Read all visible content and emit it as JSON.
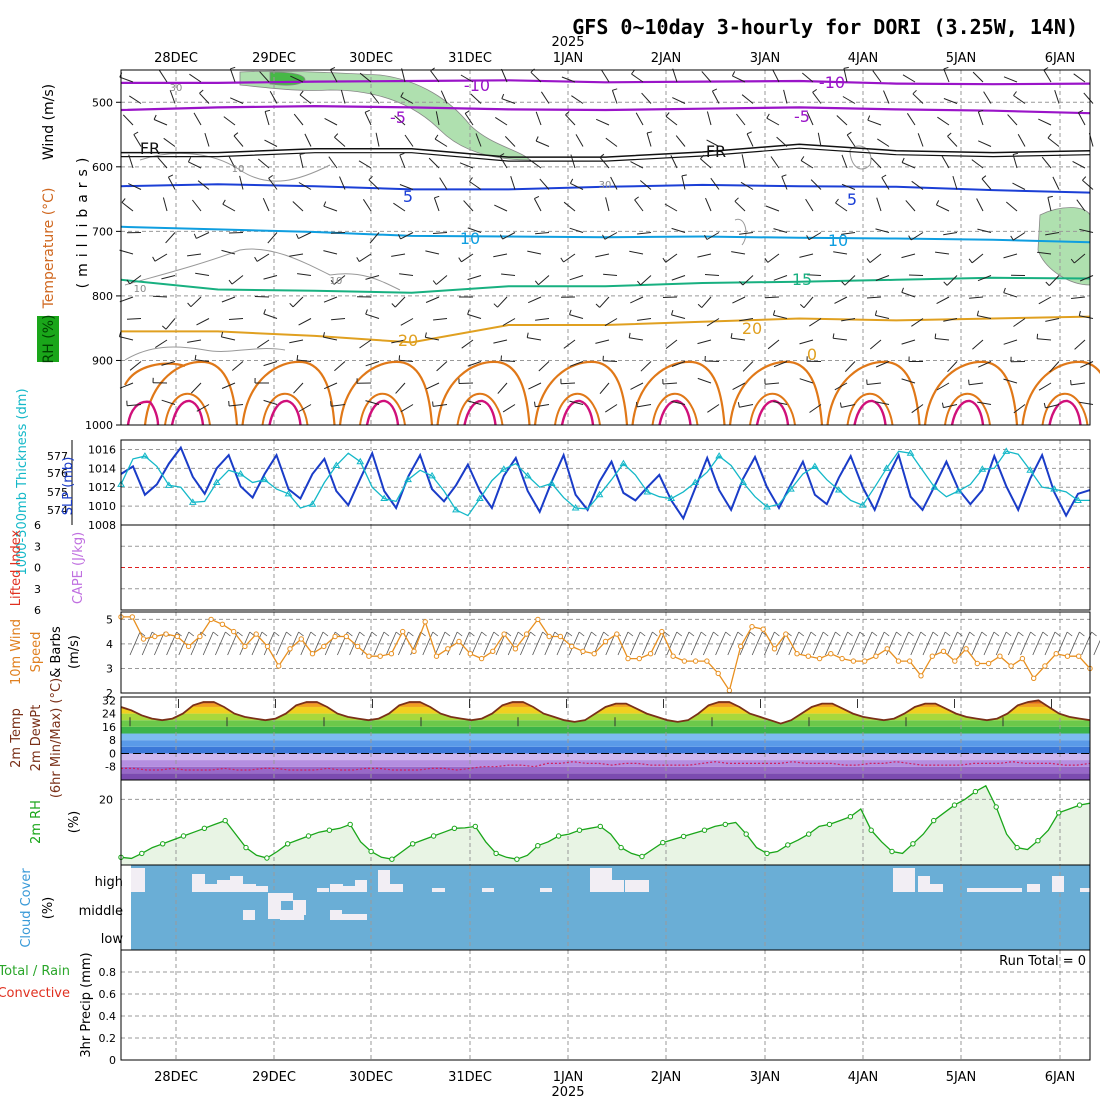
{
  "title": "GFS 0~10day 3-hourly for DORI (3.25W, 14N)",
  "year_label": "2025",
  "date_labels": [
    "28DEC",
    "29DEC",
    "30DEC",
    "31DEC",
    "1JAN",
    "2JAN",
    "3JAN",
    "4JAN",
    "5JAN",
    "6JAN"
  ],
  "colors": {
    "purple": "#9a14c8",
    "freezing": "#111111",
    "blue": "#1b3fd6",
    "cyan": "#0f9ee0",
    "green": "#18b080",
    "gold": "#e0a020",
    "orange": "#e07818",
    "magenta": "#d0107a",
    "rh_green": "#1aa61a",
    "slp_blue": "#1a3cc8",
    "thickness_cyan": "#14b8c8",
    "wind_orange": "#e89020",
    "temp_brown": "#7a3018",
    "cloud_blue": "#6aaed6",
    "cloud_white": "#f2eef4"
  },
  "panel_labels": {
    "upper_wind": "Wind (m/s)",
    "upper_temp": "Temperature (°C)",
    "upper_rh": "RH (%)",
    "upper_units": "(millibars)",
    "thickness": "1000-500mb Thickness (dm)",
    "slp": "SLP (mb)",
    "lifted": "Lifted Index",
    "cape": "CAPE (J/kg)",
    "wind10": "10m Wind",
    "wind10_speed": "Speed",
    "wind10_barbs": "& Barbs",
    "wind10_units": "(m/s)",
    "temp2m": "2m Temp",
    "dewpt2m": "2m DewPt",
    "minmax": "(6hr Min/Max) (°C)",
    "rh2m": "2m RH",
    "rh2m_units": "(%)",
    "cloud": "Cloud Cover",
    "cloud_units": "(%)",
    "cloud_high": "high",
    "cloud_middle": "middle",
    "cloud_low": "low",
    "precip_total": "Total / Rain",
    "precip_conv": "Convective",
    "precip_units": "3hr Precip (mm)",
    "run_total": "Run Total = 0"
  },
  "chart_data": [
    {
      "type": "line",
      "panel": "upper-air cross-section",
      "ylabel": "(millibars)",
      "yticks": [
        500,
        600,
        700,
        800,
        900,
        1000
      ],
      "ylim": [
        450,
        1000
      ],
      "y_inverted": true,
      "x": [
        "28DEC",
        "29DEC",
        "30DEC",
        "31DEC",
        "1JAN",
        "2JAN",
        "3JAN",
        "4JAN",
        "5JAN",
        "6JAN"
      ],
      "contour_labels": [
        "-10",
        "-10",
        "-5",
        "-5",
        "FR",
        "FR",
        "5",
        "5",
        "10",
        "10",
        "15",
        "20",
        "20",
        "0",
        "30",
        "30",
        "10",
        "10",
        "10"
      ],
      "series": [
        {
          "name": "-10",
          "level_mb": [
            470,
            470,
            468,
            467,
            466,
            469,
            468,
            467,
            471,
            472,
            471
          ]
        },
        {
          "name": "-5",
          "level_mb": [
            512,
            508,
            506,
            508,
            511,
            512,
            510,
            508,
            511,
            513,
            517
          ]
        },
        {
          "name": "FR",
          "level_mb": [
            578,
            578,
            572,
            572,
            585,
            585,
            577,
            565,
            575,
            578,
            575
          ]
        },
        {
          "name": "5",
          "level_mb": [
            630,
            627,
            630,
            635,
            635,
            631,
            628,
            630,
            631,
            636,
            640
          ]
        },
        {
          "name": "10",
          "level_mb": [
            693,
            697,
            701,
            707,
            708,
            709,
            708,
            710,
            711,
            713,
            717
          ]
        },
        {
          "name": "15",
          "level_mb": [
            775,
            790,
            792,
            795,
            785,
            785,
            780,
            778,
            775,
            772,
            773
          ]
        },
        {
          "name": "20",
          "level_mb": [
            855,
            855,
            862,
            872,
            845,
            845,
            840,
            835,
            838,
            835,
            832
          ]
        }
      ]
    },
    {
      "type": "line",
      "panel": "thickness / SLP",
      "ylabel": "1000-500mb Thickness (dm)",
      "ylabel_right_axis": "SLP (mb)",
      "yticks_thickness": [
        574,
        575,
        576,
        577
      ],
      "yticks_slp": [
        1008,
        1010,
        1012,
        1014,
        1016
      ],
      "ylim_slp": [
        1008,
        1017
      ],
      "series": [
        {
          "name": "SLP (mb)",
          "values": [
            1013.4,
            1014.2,
            1011.2,
            1012.3,
            1014.5,
            1016.2,
            1013.1,
            1011.3,
            1014.0,
            1015.4,
            1012.1,
            1010.9,
            1013.4,
            1015.4,
            1011.8,
            1010.8,
            1013.4,
            1015.0,
            1011.6,
            1010.1,
            1012.9,
            1015.6,
            1011.6,
            1009.8,
            1013.1,
            1015.4,
            1011.8,
            1010.5,
            1012.2,
            1014.4,
            1011.6,
            1009.8,
            1013.2,
            1015.1,
            1011.6,
            1009.4,
            1012.6,
            1015.4,
            1011.2,
            1009.6,
            1012.6,
            1014.7,
            1011.4,
            1010.6,
            1012.0,
            1013.3,
            1010.6,
            1008.7,
            1011.9,
            1015.1,
            1011.7,
            1009.6,
            1012.9,
            1015.2,
            1012.0,
            1009.8,
            1012.3,
            1014.7,
            1011.2,
            1010.2,
            1013.0,
            1015.3,
            1012.0,
            1009.6,
            1012.8,
            1015.4,
            1011.0,
            1009.6,
            1012.1,
            1014.7,
            1011.8,
            1010.2,
            1011.7,
            1015.3,
            1012.1,
            1009.6,
            1012.9,
            1015.4,
            1011.5,
            1009.0,
            1011.3,
            1011.7
          ]
        },
        {
          "name": "Thickness (dm)",
          "values": [
            1012.3,
            1015.0,
            1015.3,
            1014.2,
            1012.2,
            1012.0,
            1010.4,
            1010.5,
            1012.5,
            1013.8,
            1013.4,
            1012.5,
            1012.8,
            1011.8,
            1011.3,
            1009.8,
            1010.2,
            1012.5,
            1014.3,
            1015.6,
            1014.7,
            1012.0,
            1010.8,
            1010.5,
            1012.8,
            1013.8,
            1013.2,
            1011.6,
            1009.6,
            1009.0,
            1010.8,
            1012.7,
            1013.9,
            1014.5,
            1013.2,
            1012.0,
            1012.4,
            1010.9,
            1009.8,
            1009.7,
            1011.2,
            1012.8,
            1014.5,
            1013.3,
            1011.5,
            1011.0,
            1010.8,
            1011.5,
            1012.5,
            1013.6,
            1015.3,
            1014.3,
            1012.5,
            1011.0,
            1009.9,
            1010.2,
            1011.8,
            1013.4,
            1014.2,
            1012.8,
            1011.7,
            1010.6,
            1010.1,
            1012.0,
            1014.0,
            1015.8,
            1015.6,
            1013.8,
            1012.0,
            1011.0,
            1011.6,
            1012.3,
            1013.9,
            1014.0,
            1015.8,
            1015.5,
            1013.8,
            1012.0,
            1011.8,
            1011.5,
            1010.6,
            1010.6
          ]
        }
      ]
    },
    {
      "type": "line",
      "panel": "Lifted Index / CAPE",
      "ylabel": "Lifted Index",
      "ylabel_right": "CAPE (J/kg)",
      "yticks": [
        6,
        3,
        0,
        -3,
        -6
      ],
      "ylim": [
        -6,
        6
      ],
      "series": [
        {
          "name": "Lifted Index",
          "values": []
        }
      ]
    },
    {
      "type": "line",
      "panel": "10m wind",
      "ylabel": "(m/s)",
      "yticks": [
        2,
        3,
        4,
        5
      ],
      "ylim": [
        2,
        5.3
      ],
      "series": [
        {
          "name": "10m Wind Speed",
          "values": [
            5.1,
            5.1,
            4.2,
            4.3,
            4.4,
            4.3,
            3.9,
            4.3,
            5.0,
            4.8,
            4.5,
            3.9,
            4.4,
            3.9,
            3.1,
            3.8,
            4.2,
            3.6,
            3.9,
            4.3,
            4.3,
            3.9,
            3.5,
            3.5,
            3.6,
            4.5,
            3.7,
            4.9,
            3.5,
            3.8,
            4.1,
            3.6,
            3.4,
            3.7,
            4.4,
            3.8,
            4.4,
            5.0,
            4.3,
            4.3,
            3.9,
            3.7,
            3.6,
            4.1,
            4.4,
            3.4,
            3.4,
            3.6,
            4.5,
            3.5,
            3.3,
            3.3,
            3.3,
            2.8,
            2.1,
            3.9,
            4.7,
            4.6,
            3.8,
            4.4,
            3.6,
            3.5,
            3.4,
            3.6,
            3.4,
            3.3,
            3.3,
            3.5,
            3.8,
            3.3,
            3.3,
            2.7,
            3.5,
            3.7,
            3.3,
            3.8,
            3.2,
            3.2,
            3.5,
            3.1,
            3.4,
            2.6,
            3.1,
            3.6,
            3.5,
            3.5,
            3.0
          ]
        }
      ]
    },
    {
      "type": "area",
      "panel": "2m temp / dewpoint",
      "ylabel": "(6hr Min/Max) (°C)",
      "yticks": [
        -8,
        0,
        8,
        16,
        24,
        32
      ],
      "ylim": [
        -16,
        34
      ],
      "series": [
        {
          "name": "2m Temp",
          "values": [
            28,
            26,
            23,
            21,
            20,
            21,
            24,
            29,
            31,
            31,
            28,
            24,
            22,
            21,
            20,
            21,
            24,
            29,
            31,
            31,
            28,
            24,
            22,
            21,
            20,
            21,
            24,
            29,
            31,
            31,
            28,
            24,
            22,
            21,
            20,
            21,
            24,
            29,
            31,
            31,
            28,
            24,
            22,
            20,
            19,
            20,
            24,
            28,
            30,
            30,
            27,
            24,
            22,
            20,
            19,
            20,
            24,
            29,
            31,
            31,
            28,
            24,
            22,
            20,
            18,
            20,
            24,
            28,
            30,
            30,
            27,
            24,
            22,
            21,
            20,
            21,
            24,
            28,
            30,
            30,
            27,
            24,
            22,
            21,
            20,
            21,
            24,
            29,
            31,
            32,
            28,
            24,
            22,
            21,
            20
          ]
        },
        {
          "name": "2m DewPt",
          "values": [
            -9,
            -9,
            -10,
            -10,
            -9,
            -10,
            -10,
            -10,
            -9,
            -10,
            -10,
            -9,
            -9,
            -10,
            -10,
            -10,
            -9,
            -10,
            -10,
            -9,
            -9,
            -10,
            -10,
            -10,
            -9,
            -9,
            -10,
            -9,
            -8,
            -8,
            -7,
            -7,
            -8,
            -6,
            -6,
            -5,
            -6,
            -6,
            -7,
            -6,
            -6,
            -7,
            -7,
            -7,
            -7,
            -6,
            -5,
            -6,
            -6,
            -6,
            -6,
            -6,
            -5,
            -6,
            -6,
            -6,
            -7,
            -7,
            -6,
            -6,
            -5,
            -6,
            -7,
            -7,
            -7,
            -7,
            -6,
            -6,
            -6,
            -5,
            -6,
            -6,
            -6,
            -7,
            -7,
            -6
          ]
        }
      ]
    },
    {
      "type": "area",
      "panel": "2m RH",
      "ylabel": "(%)",
      "yticks": [
        20
      ],
      "ylim": [
        3,
        25
      ],
      "series": [
        {
          "name": "2m RH",
          "values": [
            5,
            4.7,
            6.0,
            7.5,
            8.5,
            9.5,
            10.5,
            11.5,
            12.5,
            13.5,
            14.5,
            11,
            7.5,
            5.5,
            4.8,
            6.5,
            8.5,
            9.5,
            10.5,
            11.5,
            12.0,
            12.5,
            13.5,
            9,
            6.5,
            5.0,
            4.5,
            6.5,
            8.5,
            9.5,
            10.5,
            11.5,
            12.5,
            12.6,
            13,
            9,
            6,
            5,
            4.5,
            5.5,
            8.0,
            9.0,
            10.5,
            11.0,
            12.0,
            12.5,
            13,
            11,
            7.5,
            6,
            5.2,
            7,
            8.8,
            9.6,
            10.4,
            11.2,
            12.0,
            13.0,
            13.5,
            14,
            11,
            7.5,
            6.0,
            6.5,
            8.2,
            9.5,
            11.0,
            13.0,
            13.5,
            14.5,
            15.5,
            17.5,
            12,
            9,
            6.5,
            6,
            8.5,
            11,
            14.5,
            16.5,
            18.5,
            20.0,
            22.0,
            23.5,
            18,
            11.0,
            7.5,
            7,
            9.3,
            12.0,
            16.5,
            17.5,
            18.5,
            19.0
          ]
        }
      ]
    },
    {
      "type": "heatmap",
      "panel": "Cloud Cover",
      "ylabel": "(%)",
      "yticks": [
        "high",
        "middle",
        "low"
      ]
    },
    {
      "type": "bar",
      "panel": "3hr Precip",
      "ylabel": "3hr Precip (mm)",
      "yticks": [
        0,
        0.2,
        0.4,
        0.6,
        0.8
      ],
      "ylim": [
        0,
        1
      ],
      "values": [],
      "annotation": "Run Total = 0"
    }
  ]
}
